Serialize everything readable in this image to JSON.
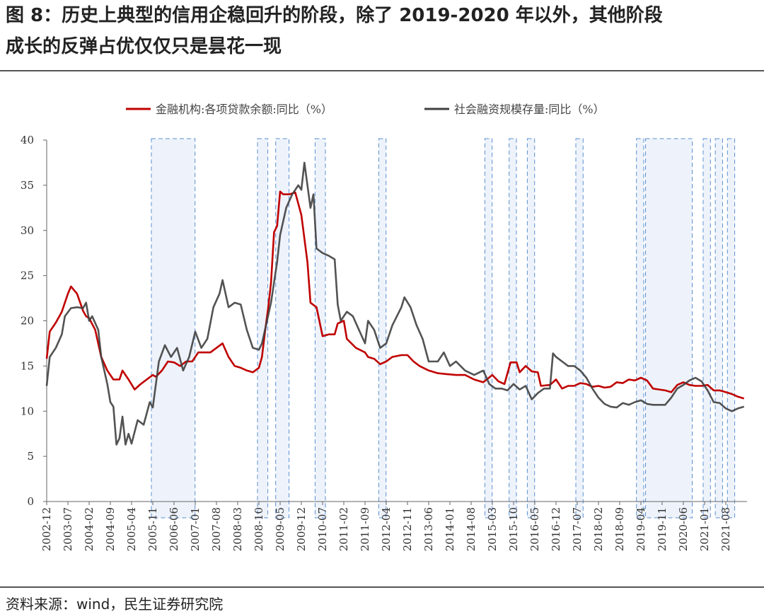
{
  "figure": {
    "title_line1": "图 8：历史上典型的信用企稳回升的阶段，除了 2019-2020 年以外，其他阶段",
    "title_line2": "成长的反弹占优仅仅只是昙花一现",
    "source": "资料来源：wind，民生证券研究院"
  },
  "chart_data": {
    "type": "line",
    "legend": [
      "金融机构:各项贷款余额:同比（%）",
      "社会融资规模存量:同比（%）"
    ],
    "ylim": [
      0,
      40
    ],
    "yticks": [
      0,
      5,
      10,
      15,
      20,
      25,
      30,
      35,
      40
    ],
    "xlim": [
      "2002-12",
      "2022-03"
    ],
    "xtick_labels": [
      "2002-12",
      "2003-07",
      "2004-02",
      "2004-09",
      "2005-04",
      "2005-11",
      "2006-06",
      "2007-01",
      "2007-08",
      "2008-03",
      "2008-10",
      "2009-05",
      "2009-12",
      "2010-07",
      "2011-02",
      "2011-09",
      "2012-04",
      "2012-11",
      "2013-06",
      "2014-01",
      "2014-08",
      "2015-03",
      "2015-10",
      "2016-05",
      "2016-12",
      "2017-07",
      "2018-02",
      "2018-09",
      "2019-04",
      "2019-11",
      "2020-06",
      "2021-01",
      "2021-08"
    ],
    "grid": false,
    "legend_position": "top",
    "highlight_periods": [
      [
        "2005-11",
        "2006-12"
      ],
      [
        "2008-10",
        "2008-12"
      ],
      [
        "2009-04",
        "2009-07"
      ],
      [
        "2010-05",
        "2010-07"
      ],
      [
        "2012-02",
        "2012-03"
      ],
      [
        "2015-01",
        "2015-02"
      ],
      [
        "2015-09",
        "2015-10"
      ],
      [
        "2016-03",
        "2016-04"
      ],
      [
        "2017-07",
        "2017-08"
      ],
      [
        "2019-03",
        "2019-04"
      ],
      [
        "2019-06",
        "2020-08"
      ],
      [
        "2021-01",
        "2021-02"
      ],
      [
        "2021-05",
        "2021-06"
      ],
      [
        "2021-09",
        "2021-10"
      ]
    ],
    "series": [
      {
        "name": "金融机构:各项贷款余额:同比（%）",
        "color": "#c00000",
        "points": [
          [
            "2002-12",
            15.8
          ],
          [
            "2003-01",
            18.8
          ],
          [
            "2003-03",
            19.8
          ],
          [
            "2003-05",
            21.0
          ],
          [
            "2003-07",
            23.0
          ],
          [
            "2003-08",
            23.8
          ],
          [
            "2003-10",
            23.0
          ],
          [
            "2003-12",
            21.1
          ],
          [
            "2004-01",
            20.5
          ],
          [
            "2004-02",
            20.3
          ],
          [
            "2004-04",
            19.0
          ],
          [
            "2004-06",
            16.0
          ],
          [
            "2004-08",
            14.5
          ],
          [
            "2004-10",
            13.5
          ],
          [
            "2004-12",
            13.5
          ],
          [
            "2005-01",
            14.5
          ],
          [
            "2005-03",
            13.5
          ],
          [
            "2005-05",
            12.4
          ],
          [
            "2005-07",
            13.0
          ],
          [
            "2005-09",
            13.5
          ],
          [
            "2005-11",
            14.0
          ],
          [
            "2005-12",
            13.8
          ],
          [
            "2006-02",
            14.5
          ],
          [
            "2006-04",
            15.5
          ],
          [
            "2006-06",
            15.4
          ],
          [
            "2006-08",
            15.0
          ],
          [
            "2006-10",
            15.5
          ],
          [
            "2006-12",
            15.5
          ],
          [
            "2007-02",
            16.5
          ],
          [
            "2007-04",
            16.5
          ],
          [
            "2007-06",
            16.5
          ],
          [
            "2007-08",
            17.0
          ],
          [
            "2007-10",
            17.5
          ],
          [
            "2007-12",
            16.0
          ],
          [
            "2008-02",
            15.0
          ],
          [
            "2008-04",
            14.8
          ],
          [
            "2008-06",
            14.5
          ],
          [
            "2008-08",
            14.3
          ],
          [
            "2008-10",
            14.8
          ],
          [
            "2008-11",
            16.0
          ],
          [
            "2008-12",
            18.8
          ],
          [
            "2009-01",
            21.3
          ],
          [
            "2009-02",
            24.2
          ],
          [
            "2009-03",
            29.8
          ],
          [
            "2009-04",
            30.5
          ],
          [
            "2009-05",
            34.3
          ],
          [
            "2009-06",
            34.0
          ],
          [
            "2009-08",
            34.0
          ],
          [
            "2009-10",
            34.2
          ],
          [
            "2009-12",
            31.7
          ],
          [
            "2010-02",
            26.5
          ],
          [
            "2010-03",
            22.0
          ],
          [
            "2010-05",
            21.5
          ],
          [
            "2010-07",
            18.3
          ],
          [
            "2010-09",
            18.5
          ],
          [
            "2010-11",
            18.5
          ],
          [
            "2010-12",
            19.7
          ],
          [
            "2011-02",
            20.0
          ],
          [
            "2011-03",
            18.0
          ],
          [
            "2011-06",
            17.0
          ],
          [
            "2011-09",
            16.5
          ],
          [
            "2011-10",
            16.0
          ],
          [
            "2011-12",
            15.8
          ],
          [
            "2012-02",
            15.2
          ],
          [
            "2012-04",
            15.5
          ],
          [
            "2012-06",
            16.0
          ],
          [
            "2012-09",
            16.2
          ],
          [
            "2012-11",
            16.2
          ],
          [
            "2013-01",
            15.5
          ],
          [
            "2013-03",
            15.0
          ],
          [
            "2013-06",
            14.5
          ],
          [
            "2013-09",
            14.2
          ],
          [
            "2013-12",
            14.1
          ],
          [
            "2014-03",
            14.0
          ],
          [
            "2014-06",
            14.0
          ],
          [
            "2014-09",
            13.5
          ],
          [
            "2014-12",
            13.2
          ],
          [
            "2015-03",
            14.0
          ],
          [
            "2015-05",
            13.3
          ],
          [
            "2015-07",
            13.0
          ],
          [
            "2015-09",
            15.4
          ],
          [
            "2015-11",
            15.4
          ],
          [
            "2015-12",
            14.3
          ],
          [
            "2016-02",
            15.0
          ],
          [
            "2016-04",
            14.4
          ],
          [
            "2016-06",
            14.3
          ],
          [
            "2016-07",
            12.8
          ],
          [
            "2016-10",
            12.9
          ],
          [
            "2016-12",
            13.5
          ],
          [
            "2017-02",
            12.5
          ],
          [
            "2017-04",
            12.8
          ],
          [
            "2017-06",
            12.8
          ],
          [
            "2017-08",
            13.1
          ],
          [
            "2017-10",
            13.0
          ],
          [
            "2017-12",
            12.7
          ],
          [
            "2018-02",
            12.8
          ],
          [
            "2018-04",
            12.6
          ],
          [
            "2018-06",
            12.7
          ],
          [
            "2018-08",
            13.2
          ],
          [
            "2018-10",
            13.1
          ],
          [
            "2018-12",
            13.5
          ],
          [
            "2019-02",
            13.4
          ],
          [
            "2019-04",
            13.7
          ],
          [
            "2019-06",
            13.4
          ],
          [
            "2019-08",
            12.5
          ],
          [
            "2019-10",
            12.4
          ],
          [
            "2019-12",
            12.3
          ],
          [
            "2020-02",
            12.1
          ],
          [
            "2020-04",
            12.9
          ],
          [
            "2020-06",
            13.2
          ],
          [
            "2020-08",
            12.9
          ],
          [
            "2020-10",
            12.8
          ],
          [
            "2020-12",
            12.8
          ],
          [
            "2021-02",
            12.9
          ],
          [
            "2021-04",
            12.3
          ],
          [
            "2021-06",
            12.3
          ],
          [
            "2021-08",
            12.1
          ],
          [
            "2021-10",
            11.9
          ],
          [
            "2021-12",
            11.6
          ],
          [
            "2022-02",
            11.4
          ]
        ]
      },
      {
        "name": "社会融资规模存量:同比（%）",
        "color": "#404040",
        "points": [
          [
            "2002-12",
            12.8
          ],
          [
            "2003-01",
            16.0
          ],
          [
            "2003-03",
            17.0
          ],
          [
            "2003-05",
            18.5
          ],
          [
            "2003-06",
            20.5
          ],
          [
            "2003-08",
            21.4
          ],
          [
            "2003-10",
            21.5
          ],
          [
            "2003-12",
            21.4
          ],
          [
            "2004-01",
            22.0
          ],
          [
            "2004-02",
            20.0
          ],
          [
            "2004-03",
            20.5
          ],
          [
            "2004-05",
            19.0
          ],
          [
            "2004-06",
            16.0
          ],
          [
            "2004-07",
            14.5
          ],
          [
            "2004-08",
            13.0
          ],
          [
            "2004-09",
            11.0
          ],
          [
            "2004-10",
            10.5
          ],
          [
            "2004-11",
            6.3
          ],
          [
            "2004-12",
            7.0
          ],
          [
            "2005-01",
            9.4
          ],
          [
            "2005-02",
            6.3
          ],
          [
            "2005-03",
            7.5
          ],
          [
            "2005-04",
            6.4
          ],
          [
            "2005-06",
            9.0
          ],
          [
            "2005-08",
            8.5
          ],
          [
            "2005-10",
            11.0
          ],
          [
            "2005-11",
            10.4
          ],
          [
            "2006-01",
            15.5
          ],
          [
            "2006-03",
            17.3
          ],
          [
            "2006-05",
            16.0
          ],
          [
            "2006-07",
            17.0
          ],
          [
            "2006-09",
            14.5
          ],
          [
            "2006-11",
            16.0
          ],
          [
            "2007-01",
            18.8
          ],
          [
            "2007-03",
            17.0
          ],
          [
            "2007-05",
            18.0
          ],
          [
            "2007-07",
            21.5
          ],
          [
            "2007-09",
            23.0
          ],
          [
            "2007-10",
            24.5
          ],
          [
            "2007-12",
            21.5
          ],
          [
            "2008-02",
            22.0
          ],
          [
            "2008-04",
            21.8
          ],
          [
            "2008-06",
            19.0
          ],
          [
            "2008-08",
            17.0
          ],
          [
            "2008-10",
            16.8
          ],
          [
            "2008-11",
            17.5
          ],
          [
            "2008-12",
            19.0
          ],
          [
            "2009-02",
            22.0
          ],
          [
            "2009-04",
            26.5
          ],
          [
            "2009-05",
            29.5
          ],
          [
            "2009-07",
            32.5
          ],
          [
            "2009-09",
            34.0
          ],
          [
            "2009-11",
            35.0
          ],
          [
            "2009-12",
            34.5
          ],
          [
            "2010-01",
            37.5
          ],
          [
            "2010-03",
            32.5
          ],
          [
            "2010-04",
            34.0
          ],
          [
            "2010-05",
            28.0
          ],
          [
            "2010-07",
            27.5
          ],
          [
            "2010-09",
            27.2
          ],
          [
            "2010-11",
            26.8
          ],
          [
            "2010-12",
            21.8
          ],
          [
            "2011-01",
            20.0
          ],
          [
            "2011-03",
            21.0
          ],
          [
            "2011-05",
            20.5
          ],
          [
            "2011-07",
            19.0
          ],
          [
            "2011-09",
            17.5
          ],
          [
            "2011-10",
            20.0
          ],
          [
            "2011-12",
            19.0
          ],
          [
            "2012-02",
            17.0
          ],
          [
            "2012-04",
            17.5
          ],
          [
            "2012-06",
            19.5
          ],
          [
            "2012-09",
            21.5
          ],
          [
            "2012-10",
            22.6
          ],
          [
            "2012-12",
            21.5
          ],
          [
            "2013-02",
            19.5
          ],
          [
            "2013-04",
            18.0
          ],
          [
            "2013-06",
            15.5
          ],
          [
            "2013-09",
            15.5
          ],
          [
            "2013-11",
            16.5
          ],
          [
            "2014-01",
            15.0
          ],
          [
            "2014-03",
            15.5
          ],
          [
            "2014-06",
            14.5
          ],
          [
            "2014-09",
            14.0
          ],
          [
            "2014-12",
            14.5
          ],
          [
            "2015-02",
            13.0
          ],
          [
            "2015-04",
            12.5
          ],
          [
            "2015-06",
            12.5
          ],
          [
            "2015-08",
            12.3
          ],
          [
            "2015-10",
            13.0
          ],
          [
            "2015-12",
            12.4
          ],
          [
            "2016-02",
            12.8
          ],
          [
            "2016-04",
            11.3
          ],
          [
            "2016-06",
            12.0
          ],
          [
            "2016-08",
            12.5
          ],
          [
            "2016-10",
            12.5
          ],
          [
            "2016-11",
            16.4
          ],
          [
            "2016-12",
            16.0
          ],
          [
            "2017-02",
            15.5
          ],
          [
            "2017-04",
            15.0
          ],
          [
            "2017-06",
            15.0
          ],
          [
            "2017-08",
            14.5
          ],
          [
            "2017-10",
            13.7
          ],
          [
            "2017-12",
            12.5
          ],
          [
            "2018-02",
            11.5
          ],
          [
            "2018-04",
            10.8
          ],
          [
            "2018-06",
            10.5
          ],
          [
            "2018-08",
            10.4
          ],
          [
            "2018-10",
            10.9
          ],
          [
            "2018-12",
            10.7
          ],
          [
            "2019-02",
            11.0
          ],
          [
            "2019-04",
            11.2
          ],
          [
            "2019-06",
            10.8
          ],
          [
            "2019-08",
            10.7
          ],
          [
            "2019-10",
            10.7
          ],
          [
            "2019-12",
            10.7
          ],
          [
            "2020-02",
            11.5
          ],
          [
            "2020-04",
            12.5
          ],
          [
            "2020-06",
            12.9
          ],
          [
            "2020-08",
            13.4
          ],
          [
            "2020-10",
            13.7
          ],
          [
            "2020-12",
            13.3
          ],
          [
            "2021-02",
            12.3
          ],
          [
            "2021-04",
            11.0
          ],
          [
            "2021-06",
            10.9
          ],
          [
            "2021-08",
            10.3
          ],
          [
            "2021-10",
            10.0
          ],
          [
            "2021-12",
            10.3
          ],
          [
            "2022-02",
            10.5
          ]
        ]
      }
    ]
  }
}
